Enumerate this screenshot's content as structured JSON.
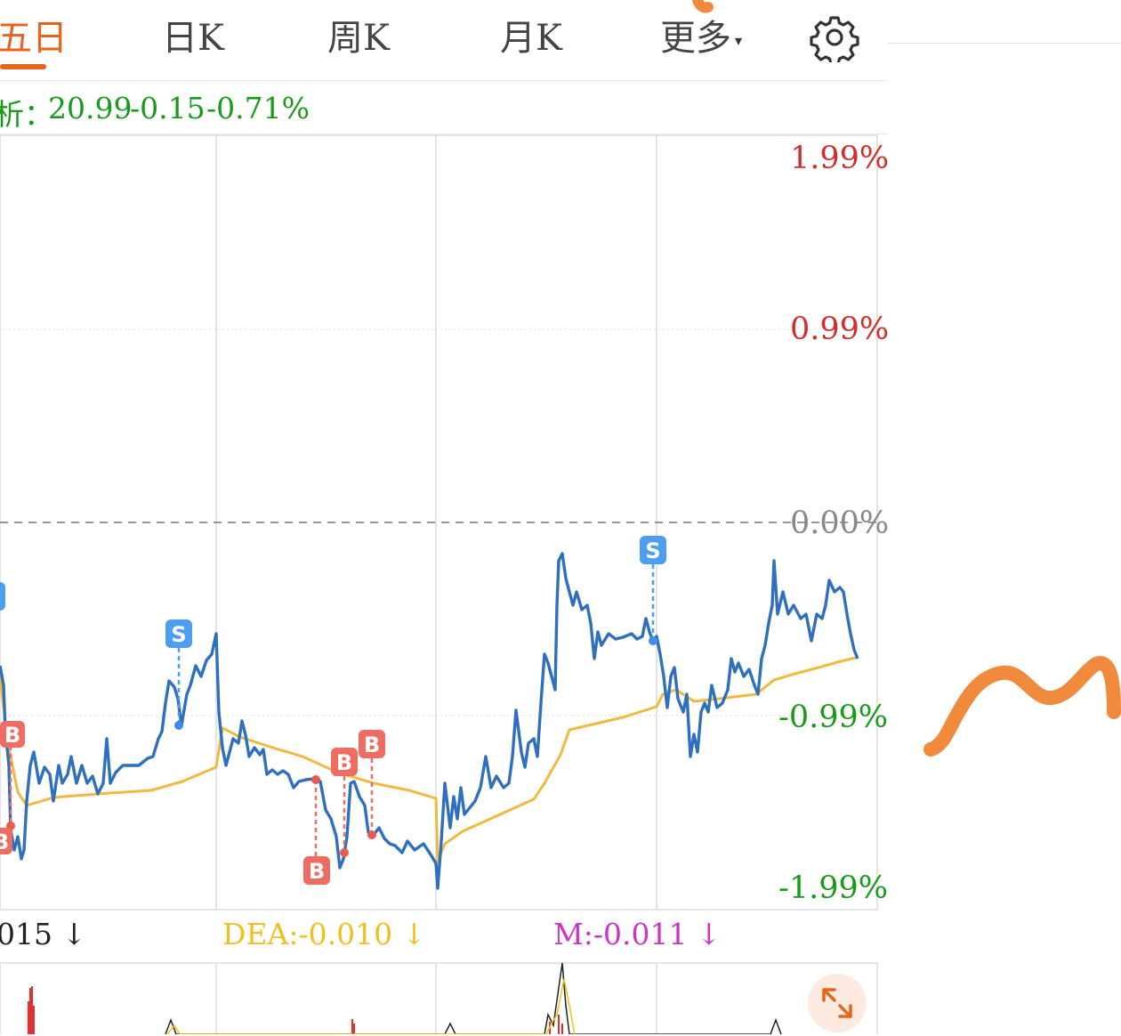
{
  "tabs": [
    {
      "label": "五日",
      "active": true
    },
    {
      "label": "日K",
      "active": false
    },
    {
      "label": "周K",
      "active": false
    },
    {
      "label": "月K",
      "active": false
    },
    {
      "label": "更多",
      "active": false
    }
  ],
  "more_caret": "▾",
  "quote": {
    "label": "析：",
    "price": "20.99",
    "change": "-0.15",
    "percent": "-0.71%"
  },
  "axis": {
    "top": "1.99%",
    "upper": "0.99%",
    "zero": "0.00%",
    "lower": "-0.99%",
    "bottom": "-1.99%"
  },
  "colors": {
    "accent": "#e5651f",
    "price_line": "#2f6fbf",
    "avg_line": "#f2b840",
    "up": "#d62b2b",
    "down": "#1a9a1a",
    "buy_marker": "#ef6c62",
    "sell_marker": "#4d9df0",
    "dea": "#f0c020",
    "m": "#cc33cc"
  },
  "markers": {
    "buy": "B",
    "sell": "S"
  },
  "legend": {
    "dif": "015 ↓",
    "dea": "DEA:-0.010 ↓",
    "m": "M:-0.011 ↓"
  },
  "icons": {
    "settings": "gear-icon",
    "expand": "expand-icon"
  }
}
